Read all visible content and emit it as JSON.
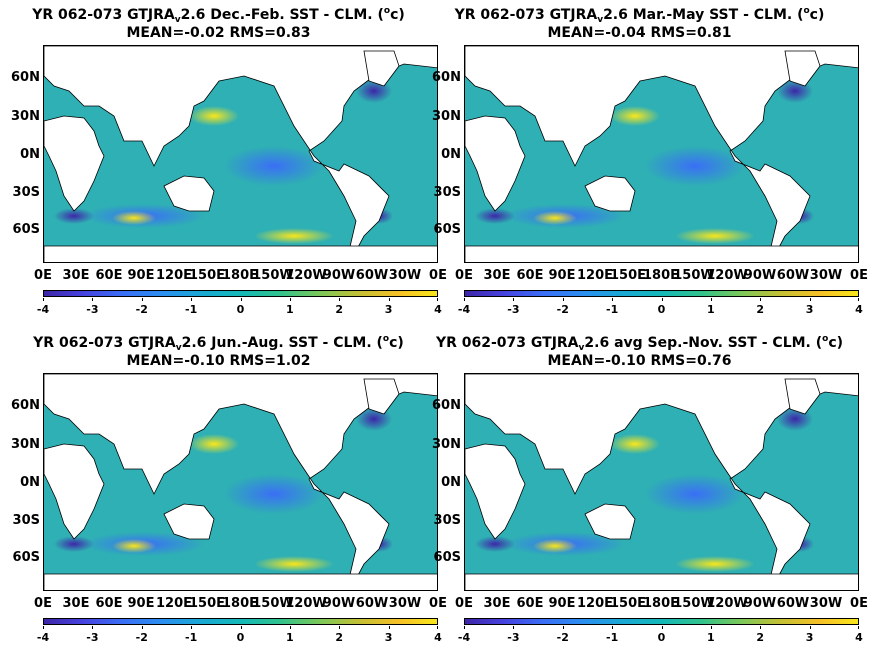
{
  "panels": [
    {
      "title_prefix": "YR 062-073 GTJRA",
      "title_sub": "v",
      "title_rest": "2.6  Dec.-Feb. SST - CLM. (",
      "unit_sup": "o",
      "unit_tail": "c)",
      "stats": "MEAN=-0.02   RMS=0.83"
    },
    {
      "title_prefix": "YR 062-073 GTJRA",
      "title_sub": "v",
      "title_rest": "2.6 Mar.-May SST - CLM. (",
      "unit_sup": "o",
      "unit_tail": "c)",
      "stats": "MEAN=-0.04   RMS=0.81"
    },
    {
      "title_prefix": "YR 062-073 GTJRA",
      "title_sub": "v",
      "title_rest": "2.6 Jun.-Aug. SST - CLM. (",
      "unit_sup": "o",
      "unit_tail": "c)",
      "stats": "MEAN=-0.10   RMS=1.02"
    },
    {
      "title_prefix": "YR 062-073 GTJRA",
      "title_sub": "v",
      "title_rest": "2.6 avg Sep.-Nov. SST - CLM. (",
      "unit_sup": "o",
      "unit_tail": "c)",
      "stats": "MEAN=-0.10   RMS=0.76"
    }
  ],
  "lat_labels": [
    "60N",
    "30N",
    "0N",
    "30S",
    "60S"
  ],
  "lon_labels": [
    "0E",
    "30E",
    "60E",
    "90E",
    "120E",
    "150E",
    "180E",
    "150W",
    "120W",
    "90W",
    "60W",
    "30W",
    "0E"
  ],
  "colorbar_labels": [
    "-4",
    "-3",
    "-2",
    "-1",
    "0",
    "1",
    "2",
    "3",
    "4"
  ],
  "colors": {
    "ocean": "#2fb0b4",
    "land": "#ffffff",
    "cold": "#3e26a8",
    "warm": "#f9e61b"
  }
}
